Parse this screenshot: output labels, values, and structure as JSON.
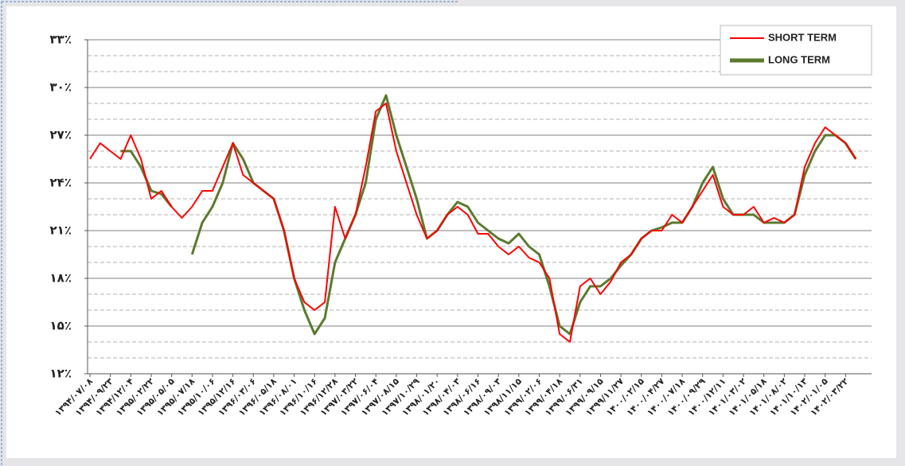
{
  "chart_data": {
    "type": "line",
    "categories": [
      "۱۳۹۴/۰۷/۰۸",
      null,
      "۱۳۹۴/۰۹/۲۳",
      null,
      "۱۳۹۴/۱۲/۰۴",
      null,
      "۱۳۹۵/۰۲/۲۲",
      null,
      "۱۳۹۵/۰۵/۰۵",
      null,
      "۱۳۹۵/۰۷/۱۸",
      null,
      "۱۳۹۵/۱۰/۰۶",
      null,
      "۱۳۹۵/۱۲/۱۶",
      null,
      "۱۳۹۶/۰۳/۰۶",
      null,
      "۱۳۹۶/۰۵/۱۸",
      null,
      "۱۳۹۶/۰۸/۰۱",
      null,
      "۱۳۹۶/۱۰/۱۶",
      null,
      "۱۳۹۶/۱۲/۲۸",
      null,
      "۱۳۹۷/۰۳/۲۲",
      null,
      "۱۳۹۷/۰۶/۰۴",
      null,
      "۱۳۹۷/۰۸/۱۵",
      null,
      "۱۳۹۷/۱۰/۲۹",
      null,
      "۱۳۹۸/۰۱/۲۰",
      null,
      "۱۳۹۸/۰۴/۰۳",
      null,
      "۱۳۹۸/۰۶/۱۶",
      null,
      "۱۳۹۸/۰۹/۰۳",
      null,
      "۱۳۹۸/۱۱/۱۵",
      null,
      "۱۳۹۹/۰۲/۰۶",
      null,
      "۱۳۹۹/۰۴/۱۸",
      null,
      "۱۳۹۹/۰۶/۳۱",
      null,
      "۱۳۹۹/۰۹/۱۵",
      null,
      "۱۳۹۹/۱۱/۲۷",
      null,
      "۱۴۰۰/۰۲/۱۵",
      null,
      "۱۴۰۰/۰۴/۲۷",
      null,
      "۱۴۰۰/۰۷/۱۸",
      null,
      "۱۴۰۰/۰۹/۲۹",
      null,
      "۱۴۰۰/۱۲/۱۱",
      null,
      "۱۴۰۱/۰۳/۰۲",
      null,
      "۱۴۰۱/۰۵/۱۸",
      null,
      "۱۴۰۱/۰۸/۰۲",
      null,
      "۱۴۰۱/۱۰/۱۳",
      null,
      "۱۴۰۲/۰۱/۰۵",
      null,
      "۱۴۰۲/۰۳/۲۲",
      null
    ],
    "series": [
      {
        "name": "SHORT TERM",
        "color": "#ff0000",
        "values": [
          25.5,
          26.5,
          26,
          25.5,
          27,
          25.5,
          23,
          23.5,
          22.5,
          21.8,
          22.5,
          23.5,
          23.5,
          25,
          26.5,
          24.5,
          24,
          23.5,
          23,
          21,
          18,
          16.5,
          16,
          16.5,
          22.5,
          20.5,
          22,
          25,
          28.5,
          29,
          26,
          24,
          22,
          20.5,
          21,
          22,
          22.5,
          22,
          20.8,
          20.8,
          20,
          19.5,
          20,
          19.3,
          19,
          18,
          14.5,
          14,
          17.5,
          18,
          17,
          17.8,
          19,
          19.5,
          20.5,
          21,
          21,
          22,
          21.5,
          22.5,
          23.5,
          24.5,
          22.5,
          22,
          22,
          22.5,
          21.5,
          21.8,
          21.5,
          22,
          25,
          26.5,
          27.5,
          27,
          26.5,
          25.5
        ]
      },
      {
        "name": "LONG TERM",
        "color": "#5a7a2e",
        "values": [
          null,
          null,
          null,
          26,
          26,
          25,
          23.5,
          23.3,
          22.5,
          null,
          19.5,
          21.5,
          22.5,
          24,
          26.5,
          25.5,
          24,
          23.5,
          23,
          21,
          18,
          16,
          14.5,
          15.5,
          19,
          20.5,
          22,
          24,
          28,
          29.5,
          27,
          25,
          23,
          20.5,
          21,
          22,
          22.8,
          22.5,
          21.5,
          21,
          20.5,
          20.2,
          20.8,
          20,
          19.5,
          17.5,
          15,
          14.5,
          16.5,
          17.5,
          17.5,
          18,
          18.8,
          19.5,
          20.5,
          21,
          21.2,
          21.5,
          21.5,
          22.5,
          24,
          25,
          23,
          22,
          22,
          22,
          21.5,
          21.5,
          21.5,
          22,
          24.5,
          26,
          27,
          27,
          26.5,
          25.5
        ]
      }
    ],
    "ylim": [
      12,
      33
    ],
    "yticks": [
      {
        "value": 12,
        "label": "۱۲٪"
      },
      {
        "value": 15,
        "label": "۱۵٪"
      },
      {
        "value": 18,
        "label": "۱۸٪"
      },
      {
        "value": 21,
        "label": "۲۱٪"
      },
      {
        "value": 24,
        "label": "۲۴٪"
      },
      {
        "value": 27,
        "label": "۲۷٪"
      },
      {
        "value": 30,
        "label": "۳۰٪"
      },
      {
        "value": 33,
        "label": "۳۳٪"
      }
    ],
    "minor_yticks": [
      13,
      14,
      16,
      17,
      19,
      20,
      22,
      23,
      25,
      26,
      28,
      29,
      31,
      32
    ],
    "grid": true,
    "legend": "top-right"
  }
}
